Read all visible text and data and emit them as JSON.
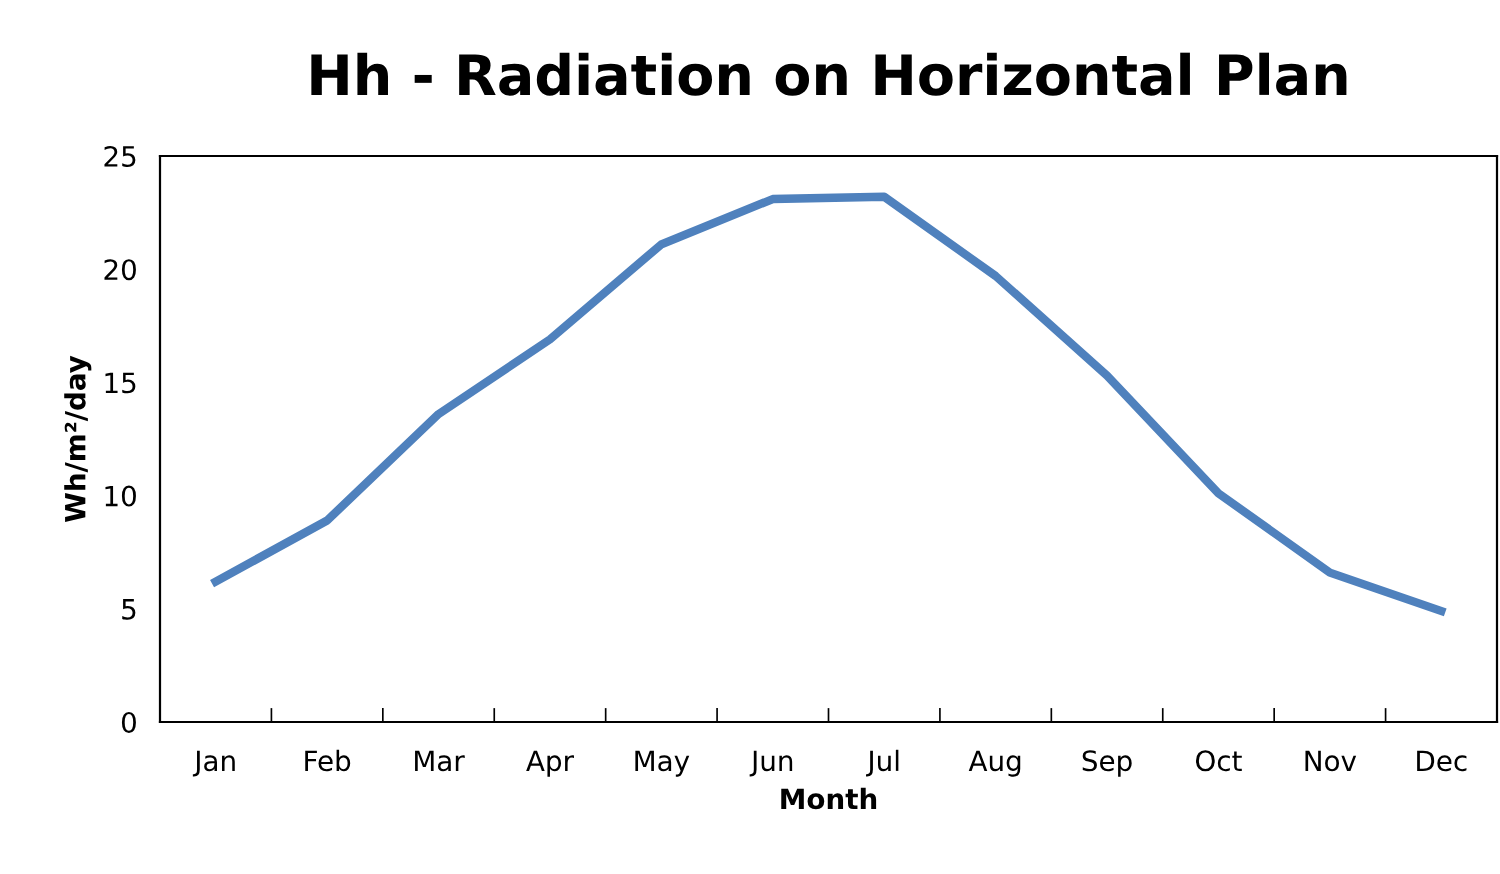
{
  "chart_data": {
    "type": "line",
    "title": "Hh - Radiation on Horizontal Plan",
    "xlabel": "Month",
    "ylabel": "Wh/m²/day",
    "categories": [
      "Jan",
      "Feb",
      "Mar",
      "Apr",
      "May",
      "Jun",
      "Jul",
      "Aug",
      "Sep",
      "Oct",
      "Nov",
      "Dec"
    ],
    "series": [
      {
        "color": "#4f81bd",
        "values": [
          6.2,
          8.9,
          13.6,
          16.9,
          21.1,
          23.1,
          23.2,
          19.7,
          15.3,
          10.1,
          6.6,
          4.9
        ]
      }
    ],
    "ylim": [
      0,
      25
    ],
    "yticks": [
      0,
      5,
      10,
      15,
      20,
      25
    ],
    "grid": false,
    "legend": false,
    "marker": "none",
    "line_style": "solid"
  }
}
